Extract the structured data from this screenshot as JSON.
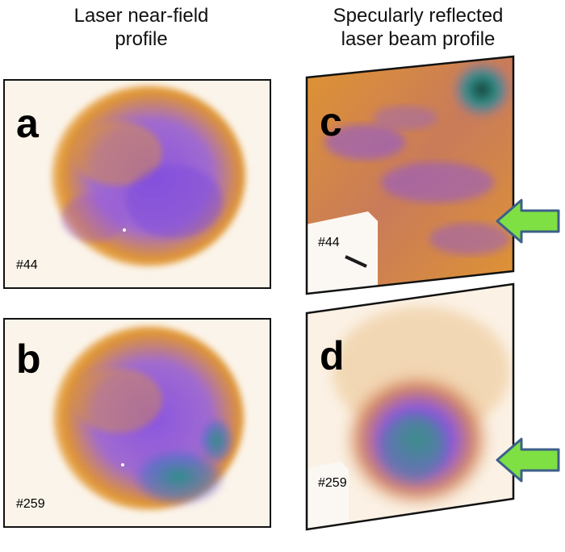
{
  "columns": {
    "left_title": "Laser near-field\nprofile",
    "right_title": "Specularly reflected\nlaser beam profile"
  },
  "panels": [
    {
      "letter": "a",
      "shot": "#44"
    },
    {
      "letter": "b",
      "shot": "#259"
    },
    {
      "letter": "c",
      "shot": "#44"
    },
    {
      "letter": "d",
      "shot": "#259"
    }
  ],
  "colors": {
    "orange": "#e0952f",
    "purple": "#8a55e0",
    "teal": "#2f8f86",
    "arrow_green": "#7ee043",
    "arrow_border": "#3d5f8a",
    "frame": "#111111"
  }
}
